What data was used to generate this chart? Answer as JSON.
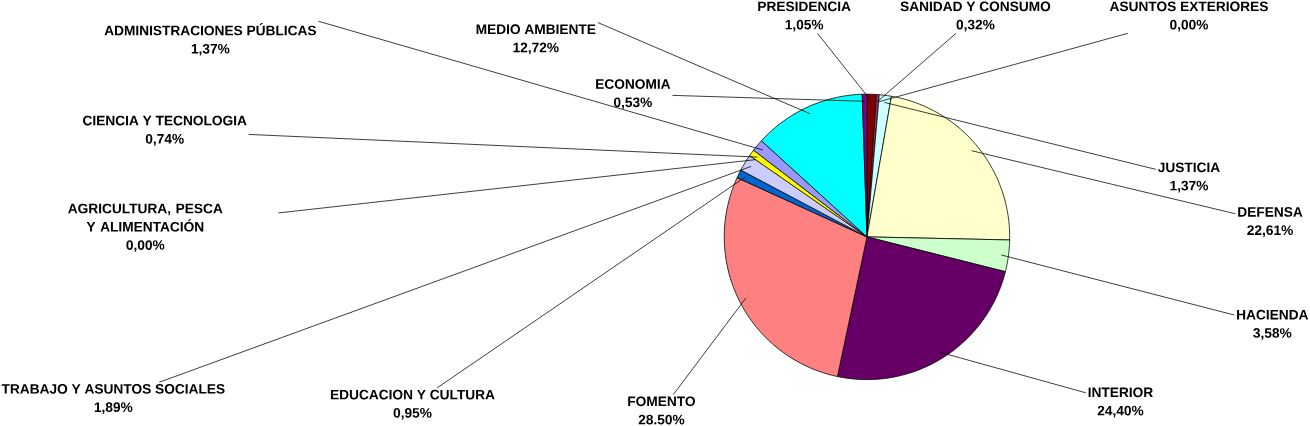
{
  "chart_data": {
    "type": "pie",
    "categories": [
      "PRESIDENCIA",
      "SANIDAD Y CONSUMO",
      "ASUNTOS EXTERIORES",
      "JUSTICIA",
      "DEFENSA",
      "HACIENDA",
      "INTERIOR",
      "FOMENTO",
      "EDUCACION Y CULTURA",
      "TRABAJO Y ASUNTOS SOCIALES",
      "AGRICULTURA, PESCA Y ALIMENTACIÓN",
      "CIENCIA Y TECNOLOGIA",
      "ADMINISTRACIONES PÚBLICAS",
      "MEDIO AMBIENTE",
      "ECONOMIA"
    ],
    "values": [
      1.05,
      0.32,
      0.0,
      1.37,
      22.61,
      3.58,
      24.4,
      28.5,
      0.95,
      1.89,
      0.0,
      0.74,
      1.37,
      12.72,
      0.53
    ],
    "value_labels": [
      "1,05%",
      "0,32%",
      "0,00%",
      "1,37%",
      "22,61%",
      "3,58%",
      "24,40%",
      "28.50%",
      "0,95%",
      "1,89%",
      "0,00%",
      "0,74%",
      "1,37%",
      "12,72%",
      "0,53%"
    ],
    "colors": [
      "#800000",
      "#993366",
      "#000080",
      "#ccffff",
      "#ffffcc",
      "#ccffcc",
      "#660066",
      "#ff8080",
      "#0066cc",
      "#ccccff",
      "#000080",
      "#ffff00",
      "#9999ff",
      "#00ffff",
      "#800080"
    ]
  }
}
